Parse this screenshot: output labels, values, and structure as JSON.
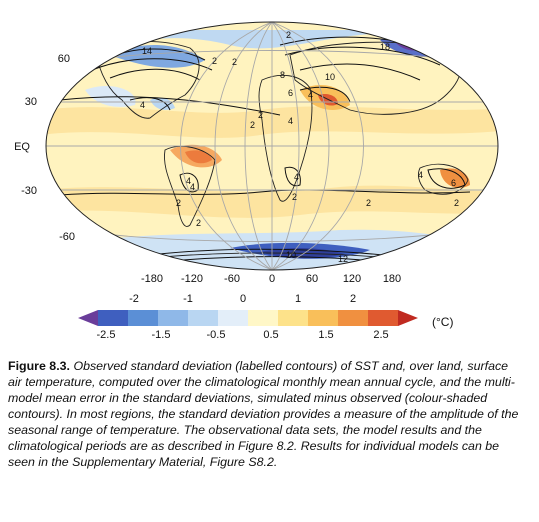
{
  "map": {
    "lat_labels": [
      "60",
      "30",
      "EQ",
      "-30",
      "-60"
    ],
    "lon_labels": [
      "-180",
      "-120",
      "-60",
      "0",
      "60",
      "120",
      "180"
    ],
    "contour_labels": [
      "14",
      "2",
      "2",
      "18",
      "10",
      "8",
      "6",
      "4",
      "4",
      "2",
      "4",
      "2",
      "4",
      "4",
      "6",
      "2",
      "4",
      "2",
      "2",
      "10",
      "12",
      "2",
      "2",
      "2",
      "4"
    ]
  },
  "colorbar": {
    "upper_ticks": [
      "-2",
      "-1",
      "0",
      "1",
      "2"
    ],
    "lower_ticks": [
      "-2.5",
      "-1.5",
      "-0.5",
      "0.5",
      "1.5",
      "2.5"
    ],
    "unit": "(°C)",
    "colors": [
      "#6a3d9a",
      "#3f5fbf",
      "#5b8fd6",
      "#8fb8e8",
      "#b9d6f2",
      "#e3eef9",
      "#fff7c7",
      "#fde28a",
      "#f9bf5a",
      "#f09040",
      "#e05a30",
      "#c02a20"
    ]
  },
  "caption": {
    "label": "Figure 8.3.",
    "text": "Observed standard deviation (labelled contours) of SST and, over land, surface air temperature, computed over the climatological monthly mean annual cycle, and the multi-model mean error in the standard deviations, simulated minus observed (colour-shaded contours). In most regions, the standard deviation provides a measure of the amplitude of the seasonal range of temperature. The observational data sets, the model results and the climatological periods are as described in Figure 8.2. Results for individual models can be seen in the Supplementary Material, Figure S8.2."
  }
}
